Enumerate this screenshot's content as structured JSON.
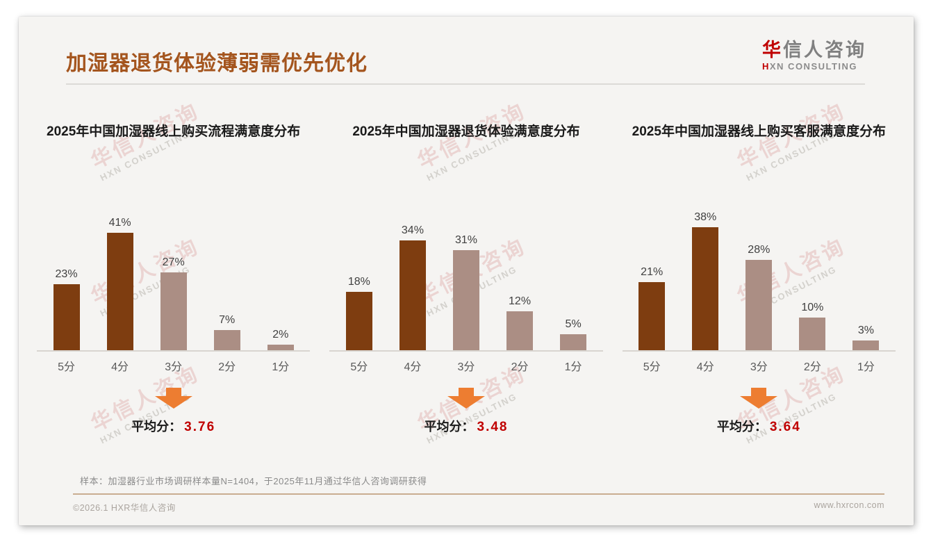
{
  "header": {
    "title": "加湿器退货体验薄弱需优先优化",
    "logo": {
      "cn_first": "华",
      "cn_rest": "信人咨询",
      "en_first": "H",
      "en_rest": "XN CONSULTING"
    }
  },
  "watermark": {
    "cn": "华信人咨询",
    "en": "HXN CONSULTING"
  },
  "chart_data": [
    {
      "type": "bar",
      "title": "2025年中国加湿器线上购买流程满意度分布",
      "categories": [
        "5分",
        "4分",
        "3分",
        "2分",
        "1分"
      ],
      "values": [
        23,
        41,
        27,
        7,
        2
      ],
      "value_labels": [
        "23%",
        "41%",
        "27%",
        "7%",
        "2%"
      ],
      "ylim": [
        0,
        45
      ],
      "bar_colors": [
        "#7e3d10",
        "#7e3d10",
        "#ab8e84",
        "#ab8e84",
        "#ab8e84"
      ],
      "avg_label": "平均分：",
      "avg_value": "3.76",
      "legend": "none",
      "grid": "off"
    },
    {
      "type": "bar",
      "title": "2025年中国加湿器退货体验满意度分布",
      "categories": [
        "5分",
        "4分",
        "3分",
        "2分",
        "1分"
      ],
      "values": [
        18,
        34,
        31,
        12,
        5
      ],
      "value_labels": [
        "18%",
        "34%",
        "31%",
        "12%",
        "5%"
      ],
      "ylim": [
        0,
        40
      ],
      "bar_colors": [
        "#7e3d10",
        "#7e3d10",
        "#ab8e84",
        "#ab8e84",
        "#ab8e84"
      ],
      "avg_label": "平均分：",
      "avg_value": "3.48",
      "legend": "none",
      "grid": "off"
    },
    {
      "type": "bar",
      "title": "2025年中国加湿器线上购买客服满意度分布",
      "categories": [
        "5分",
        "4分",
        "3分",
        "2分",
        "1分"
      ],
      "values": [
        21,
        38,
        28,
        10,
        3
      ],
      "value_labels": [
        "21%",
        "38%",
        "28%",
        "10%",
        "3%"
      ],
      "ylim": [
        0,
        40
      ],
      "bar_colors": [
        "#7e3d10",
        "#7e3d10",
        "#ab8e84",
        "#ab8e84",
        "#ab8e84"
      ],
      "avg_label": "平均分：",
      "avg_value": "3.64",
      "legend": "none",
      "grid": "off"
    }
  ],
  "colors": {
    "accent_brown": "#7e3d10",
    "accent_mauve": "#ab8e84",
    "arrow_orange": "#ed7d31",
    "avg_red": "#c00000",
    "title_brown": "#a4551e"
  },
  "footnote": "样本：加湿器行业市场调研样本量N=1404，于2025年11月通过华信人咨询调研获得",
  "footer": {
    "left": "©2026.1 HXR华信人咨询",
    "right": "www.hxrcon.com"
  }
}
